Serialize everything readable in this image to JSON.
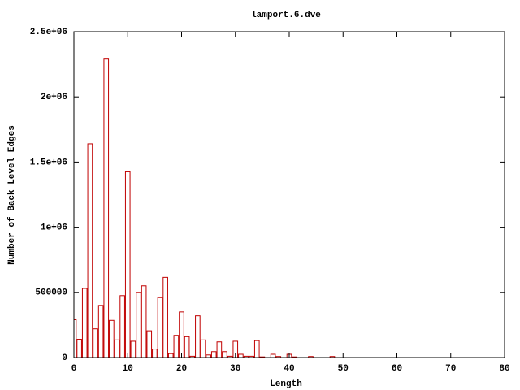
{
  "chart_data": {
    "type": "bar",
    "title": "lamport.6.dve",
    "x_label": "Length",
    "y_label": "Number of Back Level Edges",
    "x": [
      0,
      1,
      2,
      3,
      4,
      5,
      6,
      7,
      8,
      9,
      10,
      11,
      12,
      13,
      14,
      15,
      16,
      17,
      18,
      19,
      20,
      21,
      22,
      23,
      24,
      25,
      26,
      27,
      28,
      29,
      30,
      31,
      32,
      33,
      34,
      35,
      36,
      37,
      38,
      39,
      40,
      41,
      42,
      43,
      44,
      45,
      46,
      47,
      48
    ],
    "values": [
      290000,
      140000,
      530000,
      1640000,
      220000,
      400000,
      2290000,
      285000,
      135000,
      475000,
      1425000,
      125000,
      500000,
      550000,
      205000,
      65000,
      460000,
      615000,
      30000,
      170000,
      350000,
      160000,
      10000,
      320000,
      135000,
      20000,
      45000,
      120000,
      45000,
      10000,
      125000,
      25000,
      10000,
      10000,
      130000,
      5000,
      0,
      25000,
      8000,
      0,
      25000,
      5000,
      0,
      0,
      8000,
      0,
      0,
      0,
      8000
    ],
    "color": "#c00000",
    "xlim": [
      0,
      80
    ],
    "xticks": [
      0,
      10,
      20,
      30,
      40,
      50,
      60,
      70,
      80
    ],
    "ylim": [
      0,
      2500000
    ],
    "yticks": [
      0,
      500000,
      {
        "value": 1000000,
        "label": "1e+06"
      },
      {
        "value": 1500000,
        "label": "1.5e+06"
      },
      {
        "value": 2000000,
        "label": "2e+06"
      },
      {
        "value": 2500000,
        "label": "2.5e+06"
      }
    ],
    "grid": false
  }
}
